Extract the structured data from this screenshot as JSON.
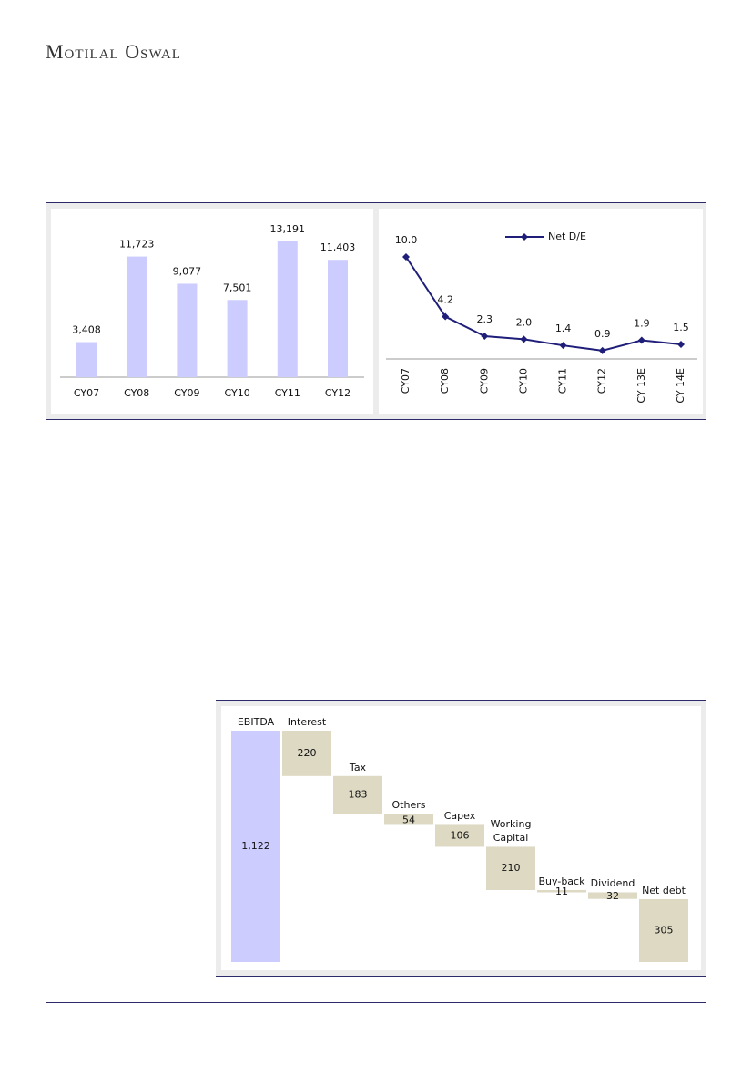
{
  "header": {
    "brand": "Motilal Oswal"
  },
  "chart_data": [
    {
      "type": "bar",
      "categories": [
        "CY07",
        "CY08",
        "CY09",
        "CY10",
        "CY11",
        "CY12"
      ],
      "values": [
        3408,
        11723,
        9077,
        7501,
        13191,
        11403
      ],
      "value_labels": [
        "3,408",
        "11,723",
        "9,077",
        "7,501",
        "13,191",
        "11,403"
      ],
      "color": "#ccccff"
    },
    {
      "type": "line",
      "categories": [
        "CY07",
        "CY08",
        "CY09",
        "CY10",
        "CY11",
        "CY12",
        "CY 13E",
        "CY 14E"
      ],
      "series": [
        {
          "name": "Net D/E",
          "color": "#1f1f7a",
          "values": [
            10.0,
            4.2,
            2.3,
            2.0,
            1.4,
            0.9,
            1.9,
            1.5
          ],
          "value_labels": [
            "10.0",
            "4.2",
            "2.3",
            "2.0",
            "1.4",
            "0.9",
            "1.9",
            "1.5"
          ]
        }
      ],
      "legend": "top"
    },
    {
      "type": "waterfall",
      "categories": [
        "EBITDA",
        "Interest",
        "Tax",
        "Others",
        "Capex",
        "Working Capital",
        "Buy-back",
        "Dividend",
        "Net debt"
      ],
      "values": [
        1122,
        220,
        183,
        54,
        106,
        210,
        11,
        32,
        305
      ],
      "value_labels": [
        "1,122",
        "220",
        "183",
        "54",
        "106",
        "210",
        "11",
        "32",
        "305"
      ],
      "total_color": "#ccccff",
      "step_color": "#ddd9c3"
    }
  ]
}
